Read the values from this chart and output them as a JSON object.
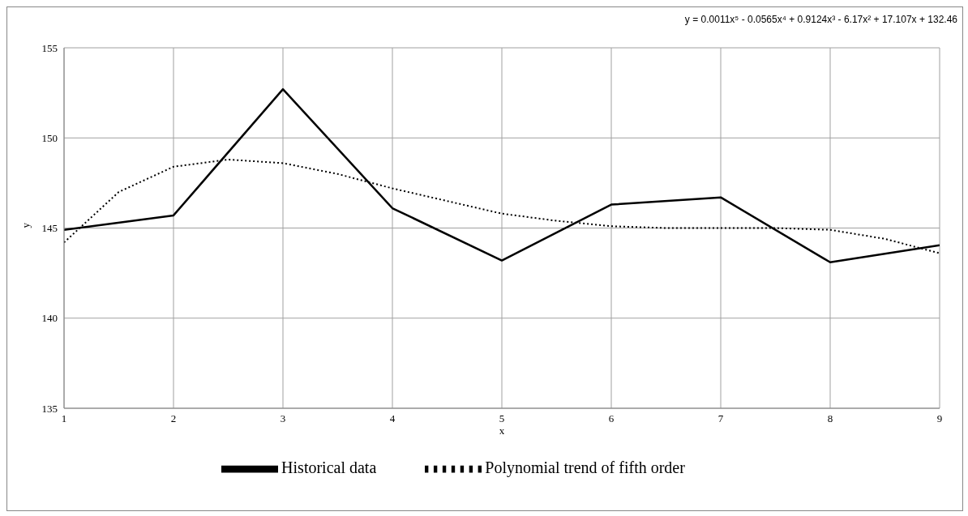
{
  "chart_data": {
    "type": "line",
    "xlabel": "x",
    "ylabel": "y",
    "annotations": [
      "y = 0.0011x⁵ - 0.0565x⁴ + 0.9124x³ - 6.17x² + 17.107x + 132.46"
    ],
    "series": [
      {
        "name": "Historical data",
        "color": "#000000",
        "line_style": "solid",
        "x": [
          1,
          2,
          3,
          4,
          5,
          6,
          7,
          8,
          9
        ],
        "values": [
          144.9,
          145.7,
          152.7,
          146.1,
          143.2,
          146.3,
          146.7,
          143.1,
          144.05
        ]
      },
      {
        "name": "Polynomial trend of fifth order",
        "color": "#000000",
        "line_style": "dotted",
        "x": [
          1,
          1.5,
          2,
          2.5,
          3,
          3.5,
          4,
          4.5,
          5,
          5.5,
          6,
          6.5,
          7,
          7.5,
          8,
          8.5,
          9
        ],
        "values": [
          144.2,
          147.0,
          148.4,
          148.8,
          148.6,
          148.0,
          147.2,
          146.5,
          145.8,
          145.4,
          145.1,
          145.0,
          145.0,
          145.0,
          144.9,
          144.4,
          143.6
        ]
      }
    ],
    "xlim": [
      1,
      9
    ],
    "xticks": [
      1,
      2,
      3,
      4,
      5,
      6,
      7,
      8,
      9
    ],
    "ylim": [
      135,
      155
    ],
    "yticks": [
      135,
      140,
      145,
      150,
      155
    ],
    "grid": true,
    "legend": "bottom",
    "marker": "none"
  }
}
